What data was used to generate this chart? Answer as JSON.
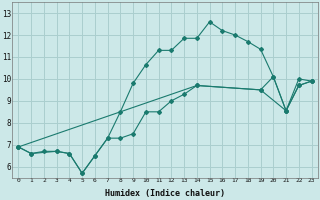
{
  "title": "",
  "xlabel": "Humidex (Indice chaleur)",
  "xlim": [
    -0.5,
    23.5
  ],
  "ylim": [
    5.5,
    13.5
  ],
  "xticks": [
    0,
    1,
    2,
    3,
    4,
    5,
    6,
    7,
    8,
    9,
    10,
    11,
    12,
    13,
    14,
    15,
    16,
    17,
    18,
    19,
    20,
    21,
    22,
    23
  ],
  "yticks": [
    6,
    7,
    8,
    9,
    10,
    11,
    12,
    13
  ],
  "background_color": "#cce8e8",
  "grid_color": "#aacece",
  "line_color": "#1a7a6e",
  "lines": [
    {
      "x": [
        0,
        1,
        2,
        3,
        4,
        5,
        6,
        7,
        8,
        9,
        10,
        11,
        12,
        13,
        14,
        15,
        16,
        17,
        18,
        19,
        20,
        21,
        22,
        23
      ],
      "y": [
        6.9,
        6.6,
        6.7,
        6.7,
        6.6,
        5.7,
        6.5,
        7.3,
        8.5,
        9.8,
        10.65,
        11.3,
        11.3,
        11.85,
        11.85,
        12.6,
        12.2,
        12.0,
        11.7,
        11.35,
        10.1,
        8.55,
        10.0,
        9.9
      ]
    },
    {
      "x": [
        0,
        1,
        3,
        4,
        5,
        6,
        7,
        8,
        9,
        10,
        11,
        12,
        13,
        14,
        19,
        20,
        21,
        22,
        23
      ],
      "y": [
        6.9,
        6.6,
        6.7,
        6.6,
        5.7,
        6.5,
        7.3,
        7.3,
        7.5,
        8.5,
        8.5,
        9.0,
        9.3,
        9.7,
        9.5,
        10.1,
        8.55,
        9.7,
        9.9
      ]
    },
    {
      "x": [
        0,
        14,
        19,
        21,
        22,
        23
      ],
      "y": [
        6.9,
        9.7,
        9.5,
        8.55,
        9.7,
        9.9
      ]
    }
  ]
}
